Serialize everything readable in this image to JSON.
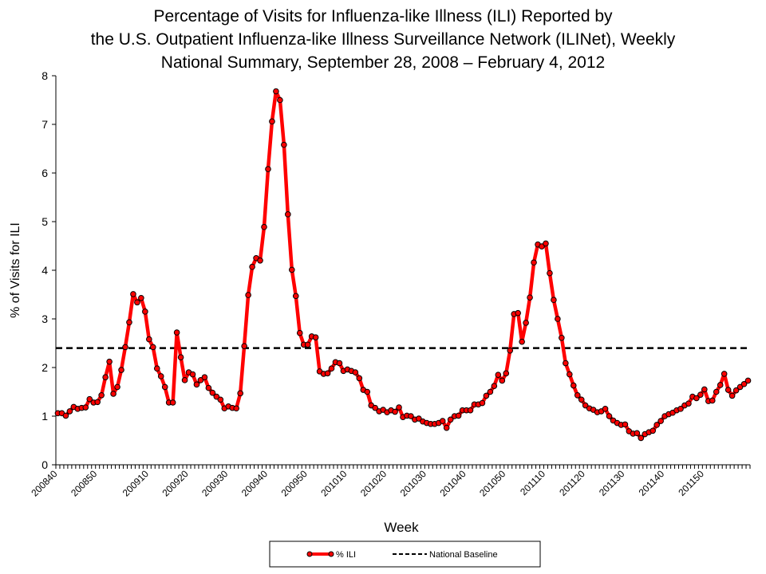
{
  "chart_data": {
    "type": "line",
    "title_lines": [
      "Percentage of Visits for Influenza-like Illness (ILI) Reported by",
      "the U.S. Outpatient Influenza-like Illness Surveillance Network (ILINet), Weekly",
      "National Summary, September 28, 2008 – February 4, 2012"
    ],
    "xlabel": "Week",
    "ylabel": "% of Visits for ILI",
    "ylim": [
      0,
      8
    ],
    "yticks": [
      0,
      1,
      2,
      3,
      4,
      5,
      6,
      7,
      8
    ],
    "xtick_labels": [
      "200840",
      "200850",
      "200910",
      "200920",
      "200930",
      "200940",
      "200950",
      "201010",
      "201020",
      "201030",
      "201040",
      "201050",
      "201110",
      "201120",
      "201130",
      "201140",
      "201150"
    ],
    "grid": false,
    "legend_position": "bottom",
    "series": [
      {
        "name": "% ILI",
        "color": "#ff0000",
        "marker": "circle",
        "values": [
          1.06,
          1.06,
          1.01,
          1.1,
          1.19,
          1.15,
          1.17,
          1.18,
          1.35,
          1.28,
          1.29,
          1.43,
          1.8,
          2.12,
          1.46,
          1.6,
          1.95,
          2.42,
          2.93,
          3.51,
          3.34,
          3.43,
          3.15,
          2.58,
          2.42,
          1.98,
          1.82,
          1.6,
          1.28,
          1.28,
          2.72,
          2.21,
          1.74,
          1.9,
          1.86,
          1.65,
          1.74,
          1.8,
          1.58,
          1.48,
          1.4,
          1.34,
          1.16,
          1.2,
          1.17,
          1.16,
          1.47,
          2.44,
          3.49,
          4.07,
          4.25,
          4.2,
          4.89,
          6.08,
          7.06,
          7.68,
          7.5,
          6.58,
          5.15,
          4.01,
          3.47,
          2.71,
          2.47,
          2.47,
          2.64,
          2.62,
          1.92,
          1.87,
          1.88,
          1.98,
          2.11,
          2.09,
          1.93,
          1.96,
          1.93,
          1.9,
          1.78,
          1.54,
          1.5,
          1.22,
          1.17,
          1.1,
          1.13,
          1.08,
          1.12,
          1.09,
          1.18,
          0.98,
          1.01,
          1.0,
          0.93,
          0.95,
          0.89,
          0.86,
          0.84,
          0.84,
          0.86,
          0.9,
          0.76,
          0.93,
          1.0,
          1.01,
          1.12,
          1.12,
          1.12,
          1.24,
          1.24,
          1.27,
          1.42,
          1.5,
          1.62,
          1.85,
          1.73,
          1.88,
          2.35,
          3.1,
          3.12,
          2.53,
          2.92,
          3.44,
          4.16,
          4.53,
          4.49,
          4.55,
          3.94,
          3.39,
          3.0,
          2.61,
          2.09,
          1.86,
          1.63,
          1.43,
          1.34,
          1.22,
          1.16,
          1.13,
          1.08,
          1.1,
          1.15,
          1.0,
          0.91,
          0.86,
          0.82,
          0.83,
          0.69,
          0.64,
          0.65,
          0.55,
          0.63,
          0.67,
          0.7,
          0.82,
          0.9,
          1.0,
          1.04,
          1.07,
          1.12,
          1.15,
          1.22,
          1.26,
          1.4,
          1.37,
          1.44,
          1.55,
          1.31,
          1.32,
          1.5,
          1.64,
          1.87,
          1.54,
          1.42,
          1.53,
          1.6,
          1.66,
          1.73
        ]
      },
      {
        "name": "National Baseline",
        "color": "#000000",
        "style": "dashed",
        "value": 2.4
      }
    ]
  }
}
